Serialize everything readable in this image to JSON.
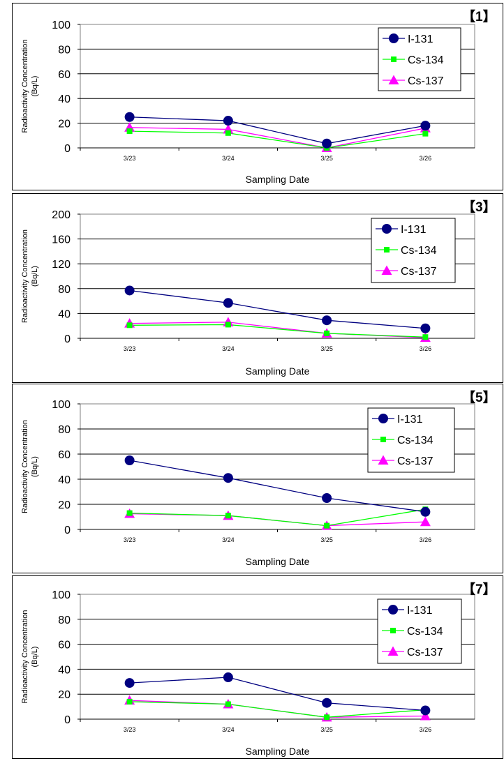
{
  "chart_data": [
    {
      "type": "line",
      "panel_label": "【1】",
      "ylabel_line1": "Radioactivity Concentration",
      "ylabel_line2": "(Bq/L)",
      "xlabel": "Sampling Date",
      "ylim": [
        0,
        100
      ],
      "yticks": [
        0,
        20,
        40,
        60,
        80,
        100
      ],
      "categories": [
        "3/23",
        "3/24",
        "3/25",
        "3/26"
      ],
      "grid": true,
      "legend": "top-right",
      "series": [
        {
          "name": "I-131",
          "values": [
            25,
            22,
            3.5,
            18
          ],
          "color": "#000080",
          "marker": "circle"
        },
        {
          "name": "Cs-134",
          "values": [
            13.5,
            12,
            0,
            11.5
          ],
          "color": "#00ff00",
          "marker": "square"
        },
        {
          "name": "Cs-137",
          "values": [
            16.5,
            15,
            0,
            16
          ],
          "color": "#ff00ff",
          "marker": "triangle"
        }
      ]
    },
    {
      "type": "line",
      "panel_label": "【3】",
      "ylabel_line1": "Radioactivity Concentration",
      "ylabel_line2": "(Bq/L)",
      "xlabel": "Sampling Date",
      "ylim": [
        0,
        200
      ],
      "yticks": [
        0,
        40,
        80,
        120,
        160,
        200
      ],
      "categories": [
        "3/23",
        "3/24",
        "3/25",
        "3/26"
      ],
      "grid": true,
      "legend": "top-right",
      "series": [
        {
          "name": "I-131",
          "values": [
            77,
            57,
            29,
            16
          ],
          "color": "#000080",
          "marker": "circle"
        },
        {
          "name": "Cs-134",
          "values": [
            21,
            22,
            8,
            2
          ],
          "color": "#00ff00",
          "marker": "square"
        },
        {
          "name": "Cs-137",
          "values": [
            24,
            26,
            8,
            1
          ],
          "color": "#ff00ff",
          "marker": "triangle"
        }
      ]
    },
    {
      "type": "line",
      "panel_label": "【5】",
      "ylabel_line1": "Radioactivity Concentration",
      "ylabel_line2": "(Bq/L)",
      "xlabel": "Sampling Date",
      "ylim": [
        0,
        100
      ],
      "yticks": [
        0,
        20,
        40,
        60,
        80,
        100
      ],
      "categories": [
        "3/23",
        "3/24",
        "3/25",
        "3/26"
      ],
      "grid": true,
      "legend": "top-right",
      "series": [
        {
          "name": "I-131",
          "values": [
            55,
            41,
            25,
            14
          ],
          "color": "#000080",
          "marker": "circle"
        },
        {
          "name": "Cs-134",
          "values": [
            13,
            11,
            3,
            16
          ],
          "color": "#00ff00",
          "marker": "square"
        },
        {
          "name": "Cs-137",
          "values": [
            12.5,
            11,
            3,
            6
          ],
          "color": "#ff00ff",
          "marker": "triangle"
        }
      ]
    },
    {
      "type": "line",
      "panel_label": "【7】",
      "ylabel_line1": "Radioactivity Concentration",
      "ylabel_line2": "(Bq/L)",
      "xlabel": "Sampling Date",
      "ylim": [
        0,
        100
      ],
      "yticks": [
        0,
        20,
        40,
        60,
        80,
        100
      ],
      "categories": [
        "3/23",
        "3/24",
        "3/25",
        "3/26"
      ],
      "grid": true,
      "legend": "top-right",
      "series": [
        {
          "name": "I-131",
          "values": [
            29,
            33.5,
            13,
            7
          ],
          "color": "#000080",
          "marker": "circle"
        },
        {
          "name": "Cs-134",
          "values": [
            14,
            12,
            1.5,
            7.5
          ],
          "color": "#00ff00",
          "marker": "square"
        },
        {
          "name": "Cs-137",
          "values": [
            15,
            12,
            1.5,
            2.5
          ],
          "color": "#ff00ff",
          "marker": "triangle"
        }
      ]
    }
  ]
}
